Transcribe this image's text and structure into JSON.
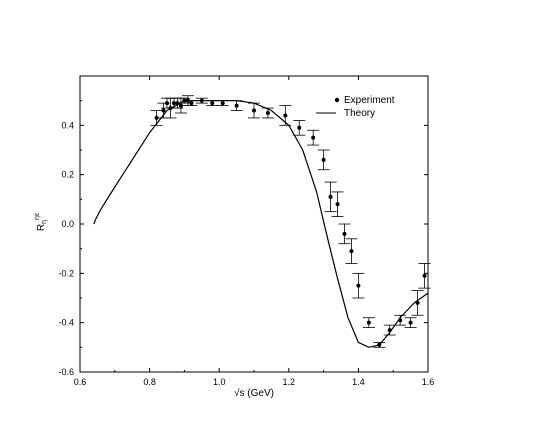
{
  "chart_data": {
    "type": "scatter",
    "title": "",
    "xlabel": "√s (GeV)",
    "ylabel": "R",
    "ylabel_sub": "η",
    "ylabel_sup": "ηε",
    "xlim": [
      0.6,
      1.6
    ],
    "ylim": [
      -0.6,
      0.6
    ],
    "xticks": [
      "0.6",
      "0.8",
      "1.0",
      "1.2",
      "1.4",
      "1.6"
    ],
    "yticks": [
      "-0.6",
      "-0.4",
      "-0.2",
      "0.0",
      "0.2",
      "0.4"
    ],
    "grid": false,
    "legend_position": "top-right",
    "series": [
      {
        "name": "Experiment",
        "kind": "points",
        "x": [
          0.82,
          0.84,
          0.85,
          0.86,
          0.87,
          0.88,
          0.89,
          0.9,
          0.91,
          0.92,
          0.95,
          0.98,
          1.01,
          1.05,
          1.1,
          1.14,
          1.19,
          1.23,
          1.27,
          1.3,
          1.32,
          1.34,
          1.36,
          1.38,
          1.4,
          1.43,
          1.46,
          1.49,
          1.52,
          1.55,
          1.57,
          1.59
        ],
        "y": [
          0.43,
          0.46,
          0.49,
          0.47,
          0.49,
          0.49,
          0.48,
          0.5,
          0.5,
          0.49,
          0.5,
          0.49,
          0.49,
          0.48,
          0.46,
          0.45,
          0.44,
          0.39,
          0.35,
          0.26,
          0.11,
          0.08,
          -0.04,
          -0.11,
          -0.25,
          -0.4,
          -0.49,
          -0.43,
          -0.39,
          -0.4,
          -0.32,
          -0.21
        ],
        "yerr": [
          0.03,
          0.03,
          0.02,
          0.04,
          0.02,
          0.02,
          0.03,
          0.01,
          0.02,
          0.01,
          0.01,
          0.01,
          0.01,
          0.02,
          0.03,
          0.02,
          0.04,
          0.03,
          0.03,
          0.04,
          0.06,
          0.05,
          0.04,
          0.05,
          0.05,
          0.02,
          0.01,
          0.02,
          0.02,
          0.02,
          0.05,
          0.05
        ]
      },
      {
        "name": "Theory",
        "kind": "line",
        "x": [
          0.64,
          0.645,
          0.66,
          0.7,
          0.75,
          0.8,
          0.85,
          0.9,
          0.95,
          1.0,
          1.05,
          1.1,
          1.15,
          1.2,
          1.24,
          1.28,
          1.31,
          1.34,
          1.37,
          1.4,
          1.43,
          1.46,
          1.49,
          1.52,
          1.56,
          1.6
        ],
        "y": [
          0.0,
          0.02,
          0.06,
          0.15,
          0.26,
          0.37,
          0.46,
          0.5,
          0.5,
          0.5,
          0.5,
          0.49,
          0.46,
          0.4,
          0.3,
          0.13,
          -0.05,
          -0.22,
          -0.38,
          -0.48,
          -0.5,
          -0.49,
          -0.44,
          -0.38,
          -0.32,
          -0.28
        ]
      }
    ]
  }
}
